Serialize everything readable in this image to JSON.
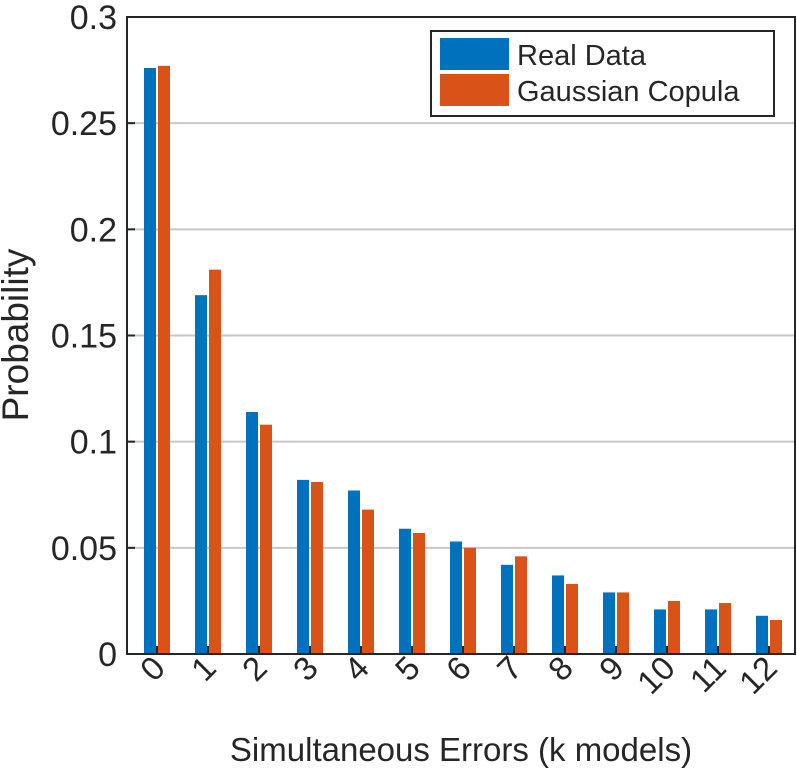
{
  "chart_data": {
    "type": "bar",
    "categories": [
      "0",
      "1",
      "2",
      "3",
      "4",
      "5",
      "6",
      "7",
      "8",
      "9",
      "10",
      "11",
      "12"
    ],
    "series": [
      {
        "name": "Real Data",
        "color": "#0072BD",
        "values": [
          0.276,
          0.169,
          0.114,
          0.082,
          0.077,
          0.059,
          0.053,
          0.042,
          0.037,
          0.029,
          0.021,
          0.021,
          0.018
        ]
      },
      {
        "name": "Gaussian Copula",
        "color": "#D95319",
        "values": [
          0.277,
          0.181,
          0.108,
          0.081,
          0.068,
          0.057,
          0.05,
          0.046,
          0.033,
          0.029,
          0.025,
          0.024,
          0.016
        ]
      }
    ],
    "xlabel": "Simultaneous Errors (k models)",
    "ylabel": "Probability",
    "ylim": [
      0,
      0.3
    ],
    "yticks": [
      "0",
      "0.05",
      "0.1",
      "0.15",
      "0.2",
      "0.25",
      "0.3"
    ],
    "ytick_values": [
      0,
      0.05,
      0.1,
      0.15,
      0.2,
      0.25,
      0.3
    ],
    "grid": "horizontal",
    "legend_position": "top-right"
  }
}
